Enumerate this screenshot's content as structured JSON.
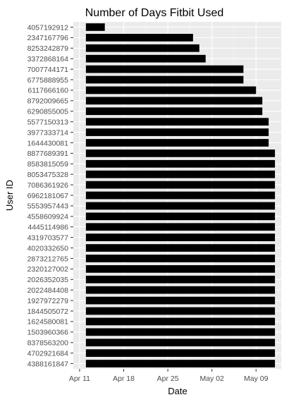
{
  "chart_data": {
    "type": "bar",
    "orientation": "horizontal",
    "title": "Number of Days Fitbit Used",
    "xlabel": "Date",
    "ylabel": "User ID",
    "x_start": "2016-04-12",
    "x_ticks": [
      "Apr 11",
      "Apr 18",
      "Apr 25",
      "May 02",
      "May 09"
    ],
    "x_tick_dates": [
      "2016-04-11",
      "2016-04-18",
      "2016-04-25",
      "2016-05-02",
      "2016-05-09"
    ],
    "xlim": [
      "2016-04-10",
      "2016-05-13"
    ],
    "grid": true,
    "panel_background": "#ebebeb",
    "bar_color": "#000000",
    "categories": [
      "4057192912",
      "2347167796",
      "8253242879",
      "3372868164",
      "7007744171",
      "6775888955",
      "6117666160",
      "8792009665",
      "6290855005",
      "5577150313",
      "3977333714",
      "1644430081",
      "8877689391",
      "8583815059",
      "8053475328",
      "7086361926",
      "6962181067",
      "5553957443",
      "4558609924",
      "4445114986",
      "4319703577",
      "4020332650",
      "2873212765",
      "2320127002",
      "2026352035",
      "2022484408",
      "1927972279",
      "1844505072",
      "1624580081",
      "1503960366",
      "8378563200",
      "4702921684",
      "4388161847"
    ],
    "end_dates": [
      "2016-04-15",
      "2016-04-29",
      "2016-04-30",
      "2016-05-01",
      "2016-05-07",
      "2016-05-07",
      "2016-05-09",
      "2016-05-10",
      "2016-05-10",
      "2016-05-11",
      "2016-05-11",
      "2016-05-11",
      "2016-05-12",
      "2016-05-12",
      "2016-05-12",
      "2016-05-12",
      "2016-05-12",
      "2016-05-12",
      "2016-05-12",
      "2016-05-12",
      "2016-05-12",
      "2016-05-12",
      "2016-05-12",
      "2016-05-12",
      "2016-05-12",
      "2016-05-12",
      "2016-05-12",
      "2016-05-12",
      "2016-05-12",
      "2016-05-12",
      "2016-05-12",
      "2016-05-12",
      "2016-05-12"
    ]
  }
}
